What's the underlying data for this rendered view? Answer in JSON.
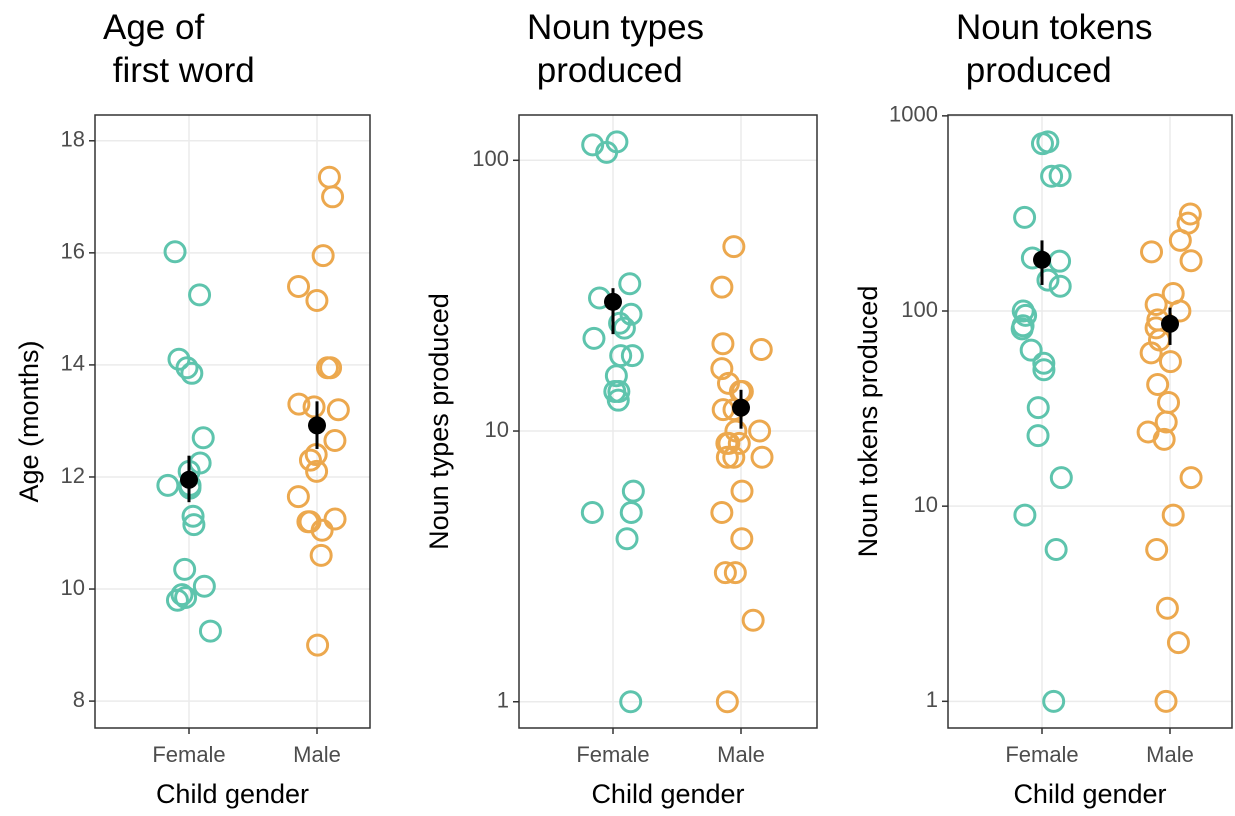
{
  "chart_data": [
    {
      "type": "scatter",
      "title": "Age of\n first word",
      "xlabel": "Child gender",
      "ylabel": "Age (months)",
      "categories": [
        "Female",
        "Male"
      ],
      "log_y": false,
      "grid": true,
      "ylim": [
        7.52,
        18.46
      ],
      "yticks": [
        8,
        10,
        12,
        14,
        16,
        18
      ],
      "series": [
        {
          "color": "#5ec4ad",
          "values": [
            16.02,
            15.25,
            13.85,
            13.95,
            14.1,
            12.7,
            12.25,
            12.1,
            11.85,
            11.8,
            11.85,
            11.3,
            11.15,
            10.35,
            10.05,
            9.9,
            9.85,
            9.8,
            9.25
          ],
          "mean": 11.95,
          "ci": [
            11.55,
            12.38
          ]
        },
        {
          "color": "#eca84e",
          "values": [
            17.35,
            17.0,
            15.95,
            15.4,
            15.15,
            13.95,
            13.95,
            13.3,
            13.25,
            13.2,
            12.65,
            12.4,
            12.3,
            12.1,
            11.65,
            11.25,
            11.2,
            11.2,
            11.05,
            10.6,
            9.0
          ],
          "mean": 12.92,
          "ci": [
            12.5,
            13.35
          ]
        }
      ]
    },
    {
      "type": "scatter",
      "title": "Noun types\n produced",
      "xlabel": "Child gender",
      "ylabel": "Noun types produced",
      "categories": [
        "Female",
        "Male"
      ],
      "log_y": true,
      "grid": true,
      "ylim": [
        0.8,
        147
      ],
      "yticks": [
        1,
        10,
        100
      ],
      "series": [
        {
          "color": "#5ec4ad",
          "values": [
            117,
            114,
            107,
            35,
            31,
            27,
            25,
            24,
            22,
            19,
            19,
            16,
            14,
            14,
            13,
            6,
            5,
            5,
            4,
            1
          ],
          "mean": 30,
          "ci": [
            22.8,
            33.7
          ]
        },
        {
          "color": "#eca84e",
          "values": [
            48,
            34,
            21,
            20,
            17,
            15,
            14,
            14,
            12,
            12,
            10,
            10,
            9,
            9,
            9,
            8,
            8,
            8,
            6,
            5,
            4,
            3,
            3,
            2,
            1
          ],
          "mean": 12.2,
          "ci": [
            10.2,
            14.2
          ]
        }
      ]
    },
    {
      "type": "scatter",
      "title": "Noun tokens\n produced",
      "xlabel": "Child gender",
      "ylabel": "Noun tokens produced",
      "categories": [
        "Female",
        "Male"
      ],
      "log_y": true,
      "grid": true,
      "ylim": [
        0.73,
        1010
      ],
      "yticks": [
        1,
        10,
        100,
        1000
      ],
      "series": [
        {
          "color": "#5ec4ad",
          "values": [
            736,
            720,
            494,
            490,
            302,
            187,
            180,
            144,
            134,
            100,
            95,
            84,
            81,
            63,
            54,
            50,
            32,
            23,
            14,
            9,
            6,
            1
          ],
          "mean": 183,
          "ci": [
            136,
            230
          ]
        },
        {
          "color": "#eca84e",
          "values": [
            314,
            282,
            230,
            201,
            181,
            123,
            108,
            100,
            90,
            82,
            71,
            61,
            55,
            42,
            34,
            27,
            24,
            22,
            14,
            9,
            6,
            3,
            2,
            1
          ],
          "mean": 86,
          "ci": [
            67,
            104
          ]
        }
      ]
    }
  ]
}
